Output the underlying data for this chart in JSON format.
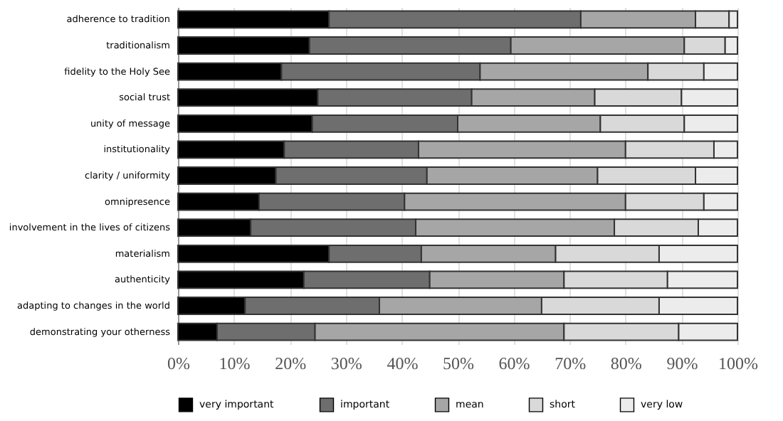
{
  "chart_data": {
    "type": "bar",
    "orientation": "horizontal",
    "stacked": true,
    "categories": [
      "adherence to tradition",
      "traditionalism",
      "fidelity to the Holy See",
      "social trust",
      "unity of message",
      "institutionality",
      "clarity / uniformity",
      "omnipresence",
      "involvement in the lives of citizens",
      "materialism",
      "authenticity",
      "adapting to changes in the world",
      "demonstrating your otherness"
    ],
    "series": [
      {
        "name": "very important",
        "color": "#000000",
        "values": [
          27,
          23.5,
          18.5,
          25,
          24,
          19,
          17.5,
          14.5,
          13,
          27,
          22.5,
          12,
          7
        ]
      },
      {
        "name": "important",
        "color": "#6e6e6e",
        "values": [
          45,
          36,
          35.5,
          27.5,
          26,
          24,
          27,
          26,
          29.5,
          16.5,
          22.5,
          24,
          17.5
        ]
      },
      {
        "name": "mean",
        "color": "#a6a6a6",
        "values": [
          20.5,
          31,
          30,
          22,
          25.5,
          37,
          30.5,
          39.5,
          35.5,
          24,
          24,
          29,
          44.5
        ]
      },
      {
        "name": "short",
        "color": "#d9d9d9",
        "values": [
          6,
          7.3,
          10,
          15.5,
          15,
          15.8,
          17.5,
          14,
          15,
          18.5,
          18.5,
          21,
          20.5
        ]
      },
      {
        "name": "very low",
        "color": "#ececec",
        "values": [
          1.5,
          2.2,
          6,
          10,
          9.5,
          4.2,
          7.5,
          6,
          7,
          14,
          12.5,
          14,
          10.5
        ]
      }
    ],
    "xlim": [
      0,
      100
    ],
    "xticks": [
      {
        "value": 0,
        "label": "0%"
      },
      {
        "value": 10,
        "label": "10%"
      },
      {
        "value": 20,
        "label": "20%"
      },
      {
        "value": 30,
        "label": "30%"
      },
      {
        "value": 40,
        "label": "40%"
      },
      {
        "value": 50,
        "label": "50%"
      },
      {
        "value": 60,
        "label": "60%"
      },
      {
        "value": 70,
        "label": "70%"
      },
      {
        "value": 80,
        "label": "80%"
      },
      {
        "value": 90,
        "label": "90%"
      },
      {
        "value": 100,
        "label": "100%"
      }
    ],
    "grid": "x",
    "legend": "bottom"
  }
}
